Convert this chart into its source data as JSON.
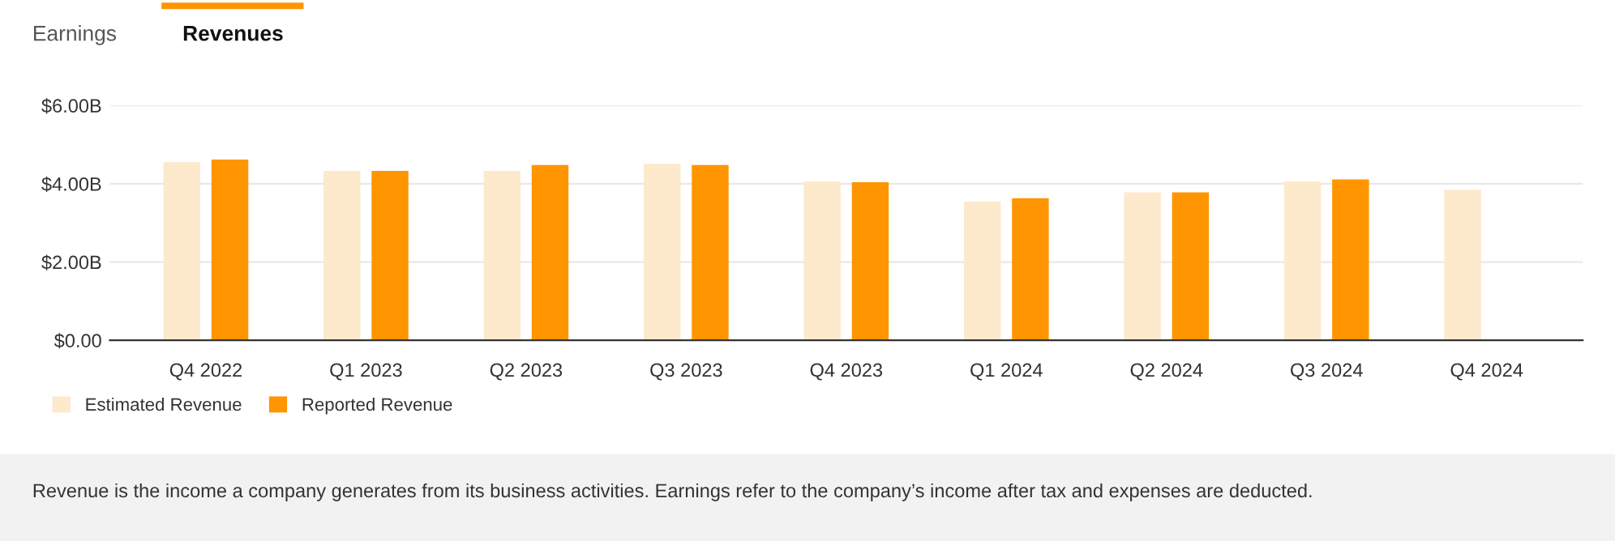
{
  "chart_data": {
    "type": "bar",
    "categories": [
      "Q4 2022",
      "Q1 2023",
      "Q2 2023",
      "Q3 2023",
      "Q4 2023",
      "Q1 2024",
      "Q2 2024",
      "Q3 2024",
      "Q4 2024"
    ],
    "series": [
      {
        "name": "Estimated Revenue",
        "color": "#fde9cc",
        "values": [
          4.55,
          4.33,
          4.33,
          4.51,
          4.06,
          3.54,
          3.78,
          4.06,
          3.85
        ]
      },
      {
        "name": "Reported Revenue",
        "color": "#ff9500",
        "values": [
          4.62,
          4.33,
          4.48,
          4.48,
          4.04,
          3.63,
          3.78,
          4.11,
          null
        ]
      }
    ],
    "ylim": [
      0,
      6
    ],
    "yticks": [
      {
        "value": 0,
        "label": "$0.00"
      },
      {
        "value": 2,
        "label": "$2.00B"
      },
      {
        "value": 4,
        "label": "$4.00B"
      },
      {
        "value": 6,
        "label": "$6.00B"
      }
    ],
    "grid": "y",
    "legend": "bottom left",
    "annotations": [
      "Earnings",
      "Revenues",
      "Revenue is the income a company generates from its business activities. Earnings refer to the company’s income after tax and expenses are deducted."
    ]
  }
}
